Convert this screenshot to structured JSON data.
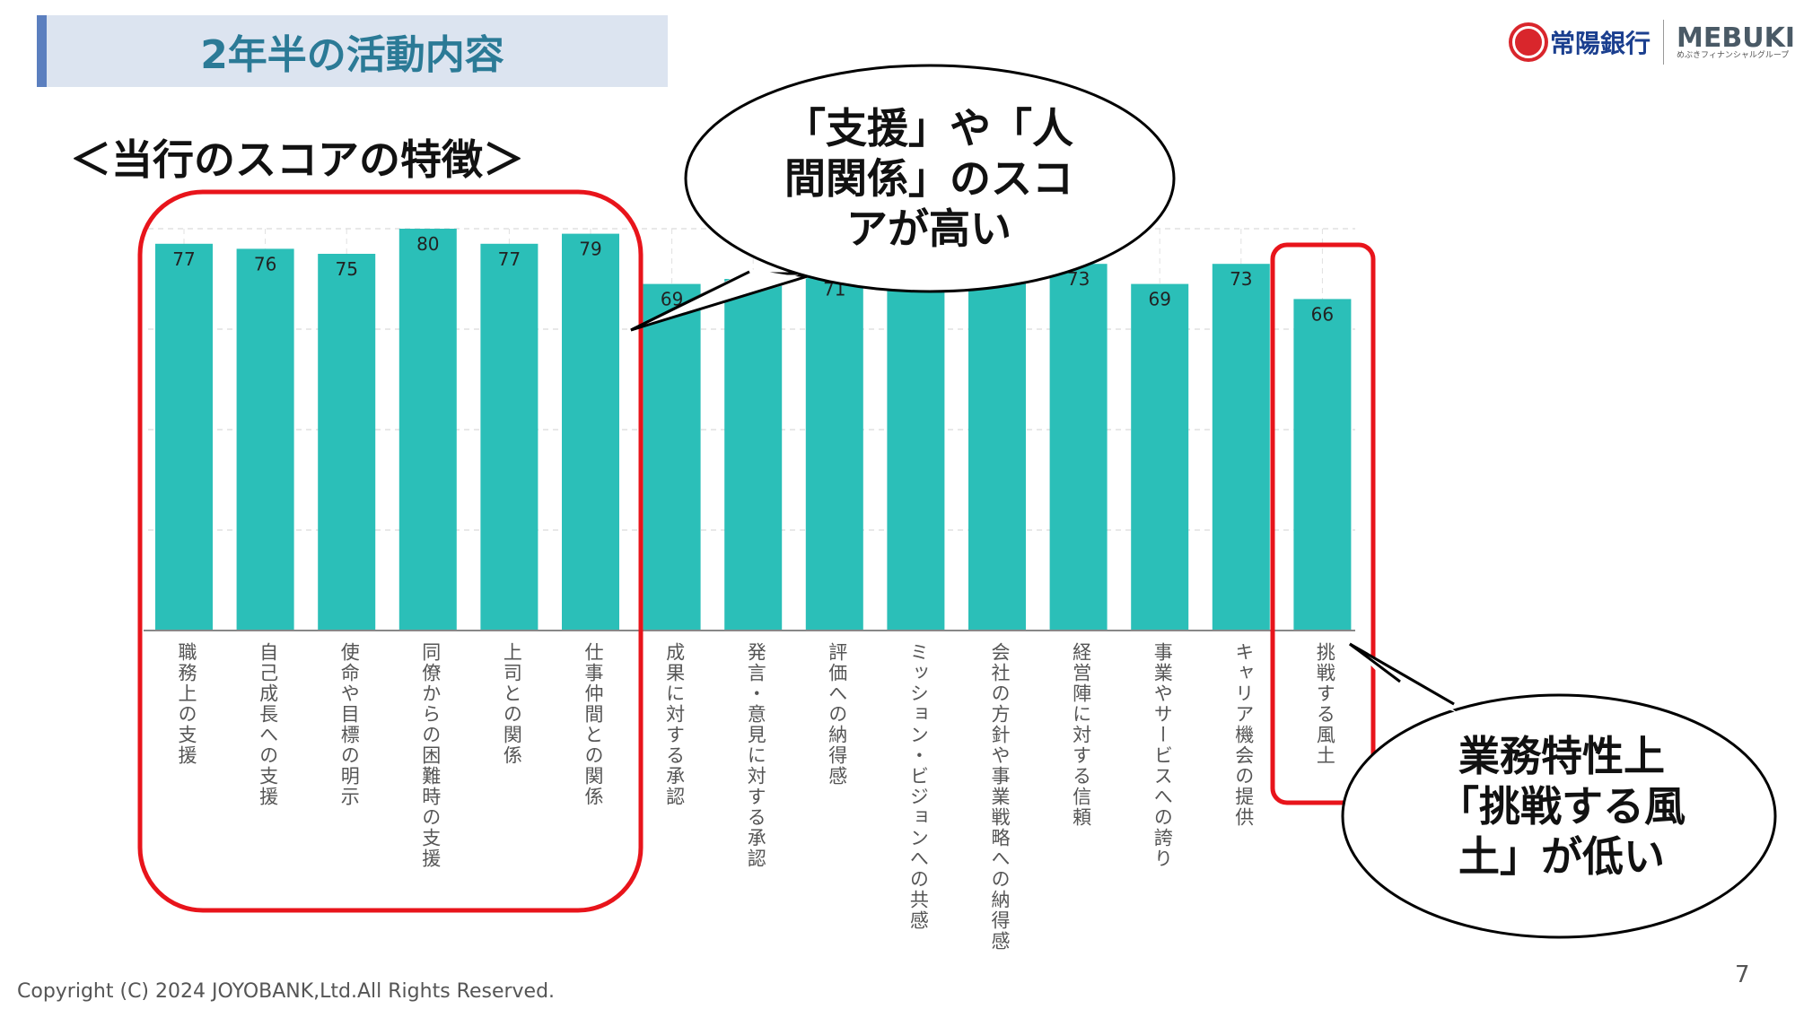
{
  "header": {
    "title": "2年半の活動内容",
    "subtitle": "＜当行のスコアの特徴＞"
  },
  "logo": {
    "bank": "常陽銀行",
    "group": "MEBUKI",
    "group_sub": "めぶきフィナンシャルグループ"
  },
  "callouts": {
    "high": "「支援」や「人間関係」のスコアが高い",
    "low": "業務特性上「挑戦する風土」が低い"
  },
  "footer": {
    "copyright": "Copyright (C) 2024  JOYOBANK,Ltd.All Rights Reserved.",
    "page": "7"
  },
  "chart_data": {
    "type": "bar",
    "categories": [
      "職務上の支援",
      "自己成長への支援",
      "使命や目標の明示",
      "同僚からの困難時の支援",
      "上司との関係",
      "仕事仲間との関係",
      "成果に対する承認",
      "発言・意見に対する承認",
      "評価への納得感",
      "ミッション・ビジョンへの共感",
      "会社の方針や事業戦略への納得感",
      "経営陣に対する信頼",
      "事業やサービスへの誇り",
      "キャリア機会の提供",
      "挑戦する風土"
    ],
    "values": [
      77,
      76,
      75,
      80,
      77,
      79,
      69,
      70,
      71,
      72,
      72,
      73,
      69,
      73,
      66
    ],
    "labels": [
      "77",
      "76",
      "75",
      "80",
      "77",
      "79",
      "69",
      "",
      "71",
      "",
      "",
      "73",
      "69",
      "73",
      "66"
    ],
    "ylim": [
      0,
      100
    ],
    "grid": true,
    "color": "#2bbfb8"
  }
}
